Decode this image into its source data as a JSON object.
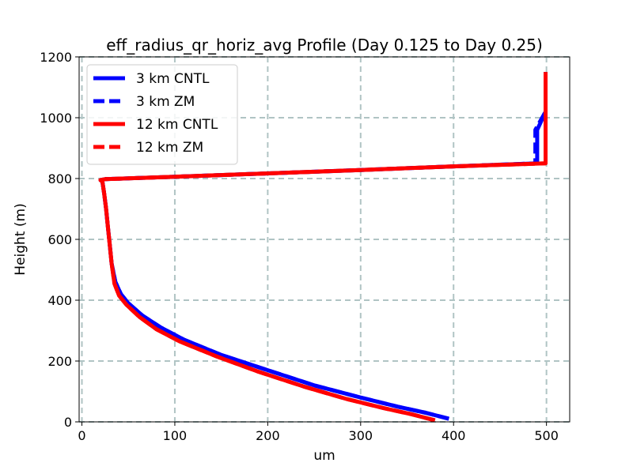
{
  "chart_data": {
    "type": "line",
    "title": "eff_radius_qr_horiz_avg Profile (Day 0.125 to Day 0.25)",
    "xlabel": "um",
    "ylabel": "Height (m)",
    "xlim": [
      -3,
      525
    ],
    "ylim": [
      0,
      1200
    ],
    "xticks": [
      0,
      100,
      200,
      300,
      400,
      500
    ],
    "yticks": [
      0,
      200,
      400,
      600,
      800,
      1000,
      1200
    ],
    "grid": true,
    "legend_position": "upper left",
    "series": [
      {
        "name": "3 km CNTL",
        "color": "#0000ff",
        "style": "solid",
        "x": [
          395,
          370,
          340,
          300,
          250,
          200,
          150,
          110,
          85,
          65,
          50,
          42,
          36,
          32,
          30,
          28,
          26,
          24,
          22,
          20,
          25,
          100,
          200,
          300,
          400,
          490,
          490,
          499,
          499,
          499
        ],
        "y": [
          10,
          30,
          50,
          80,
          120,
          170,
          220,
          270,
          310,
          350,
          390,
          420,
          460,
          520,
          580,
          640,
          700,
          750,
          790,
          795,
          798,
          806,
          817,
          828,
          840,
          850,
          960,
          1020,
          1100,
          1150
        ]
      },
      {
        "name": "3 km ZM",
        "color": "#0000ff",
        "style": "dashed",
        "x": [
          395,
          370,
          340,
          300,
          250,
          200,
          150,
          110,
          85,
          65,
          50,
          42,
          36,
          32,
          30,
          28,
          26,
          24,
          22,
          20,
          25,
          100,
          200,
          300,
          400,
          488,
          488,
          499,
          499,
          499
        ],
        "y": [
          10,
          30,
          50,
          80,
          120,
          170,
          220,
          270,
          310,
          350,
          390,
          420,
          460,
          520,
          580,
          640,
          700,
          750,
          790,
          795,
          798,
          806,
          817,
          828,
          840,
          850,
          960,
          1020,
          1100,
          1150
        ]
      },
      {
        "name": "12 km CNTL",
        "color": "#ff0000",
        "style": "solid",
        "x": [
          380,
          355,
          325,
          285,
          240,
          190,
          145,
          105,
          80,
          62,
          48,
          40,
          35,
          32,
          30,
          28,
          26,
          24,
          22,
          20,
          25,
          100,
          200,
          300,
          400,
          499,
          499,
          499,
          499
        ],
        "y": [
          5,
          25,
          45,
          75,
          115,
          165,
          215,
          265,
          305,
          345,
          385,
          415,
          455,
          520,
          580,
          640,
          700,
          750,
          790,
          795,
          798,
          806,
          817,
          828,
          840,
          850,
          960,
          1100,
          1150
        ]
      },
      {
        "name": "12 km ZM",
        "color": "#ff0000",
        "style": "dashed",
        "x": [
          380,
          355,
          325,
          285,
          240,
          190,
          145,
          105,
          80,
          62,
          48,
          40,
          35,
          32,
          30,
          28,
          26,
          24,
          22,
          20,
          25,
          100,
          200,
          300,
          400,
          499,
          499,
          499,
          499
        ],
        "y": [
          5,
          25,
          45,
          75,
          115,
          165,
          215,
          265,
          305,
          345,
          385,
          415,
          455,
          520,
          580,
          640,
          700,
          750,
          790,
          795,
          798,
          806,
          817,
          828,
          840,
          850,
          960,
          1100,
          1150
        ]
      }
    ]
  }
}
